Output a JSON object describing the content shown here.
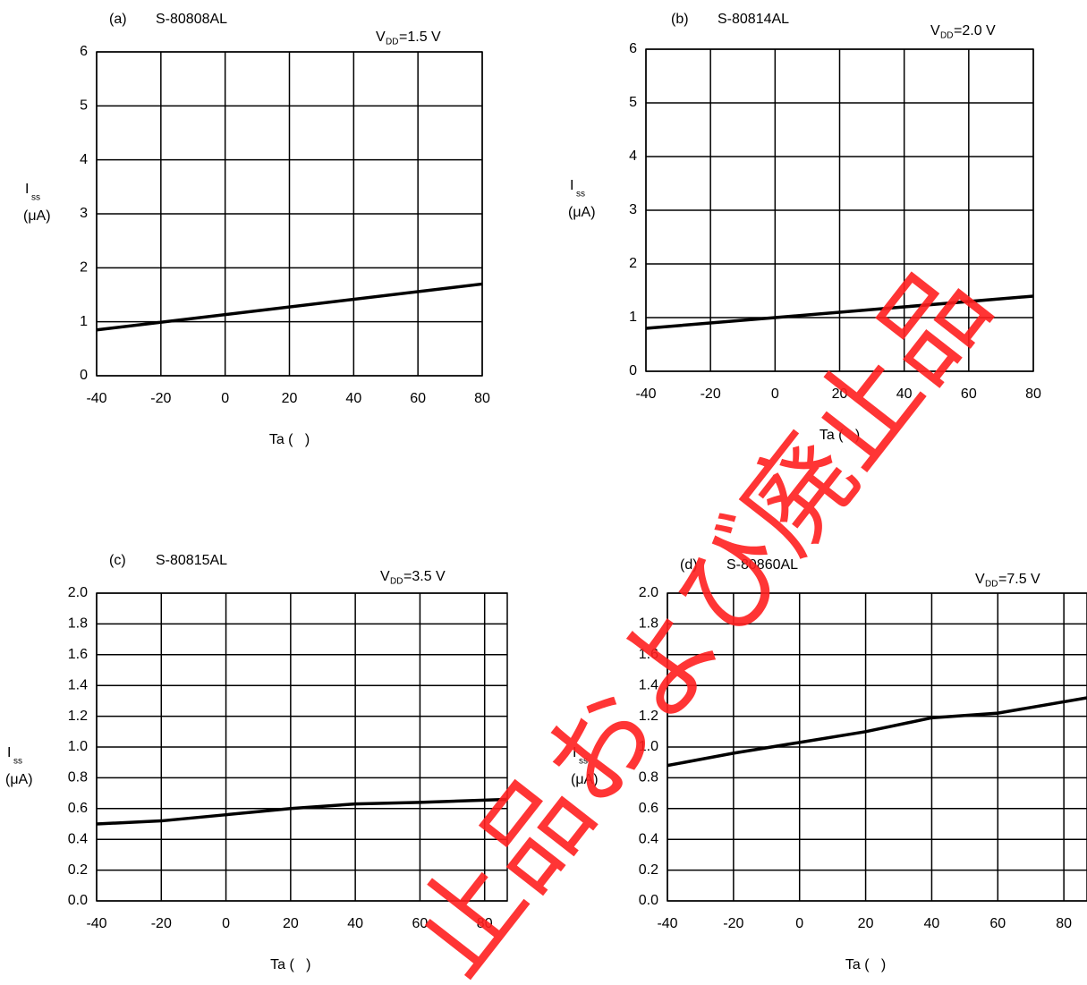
{
  "chart_data": [
    {
      "type": "line",
      "panel": "(a)",
      "title": "S-80808AL",
      "annotation": {
        "main": "V",
        "sub": "DD",
        "text": "=1.5 V"
      },
      "ylabel": {
        "main": "I",
        "sub": "ss",
        "unit": "(μA)"
      },
      "xlabel": "Ta (   )",
      "x": [
        -40,
        80
      ],
      "series": [
        {
          "color": "#000000",
          "values": [
            0.85,
            1.7
          ]
        }
      ],
      "xlim": [
        -40,
        80
      ],
      "xticks": [
        -40,
        -20,
        0,
        20,
        40,
        60,
        80
      ],
      "ylim": [
        0,
        6
      ],
      "yticks": [
        0,
        1,
        2,
        3,
        4,
        5,
        6
      ],
      "grid": true
    },
    {
      "type": "line",
      "panel": "(b)",
      "title": "S-80814AL",
      "annotation": {
        "main": "V",
        "sub": "DD",
        "text": "=2.0 V"
      },
      "ylabel": {
        "main": "I",
        "sub": "ss",
        "unit": "(μA)"
      },
      "xlabel": "Ta (   )",
      "x": [
        -40,
        0,
        40,
        80
      ],
      "series": [
        {
          "color": "#000000",
          "values": [
            0.8,
            1.0,
            1.2,
            1.4
          ]
        }
      ],
      "xlim": [
        -40,
        80
      ],
      "xticks": [
        -40,
        -20,
        0,
        20,
        40,
        60,
        80
      ],
      "ylim": [
        0,
        6
      ],
      "yticks": [
        0,
        1,
        2,
        3,
        4,
        5,
        6
      ],
      "grid": true
    },
    {
      "type": "line",
      "panel": "(c)",
      "title": "S-80815AL",
      "annotation": {
        "main": "V",
        "sub": "DD",
        "text": "=3.5 V"
      },
      "ylabel": {
        "main": "I",
        "sub": "ss",
        "unit": "(μA)"
      },
      "xlabel": "Ta (   )",
      "x": [
        -40,
        -20,
        0,
        20,
        40,
        60,
        87
      ],
      "series": [
        {
          "color": "#000000",
          "values": [
            0.5,
            0.52,
            0.56,
            0.6,
            0.63,
            0.64,
            0.66
          ]
        }
      ],
      "xlim": [
        -40,
        87
      ],
      "xticks": [
        -40,
        -20,
        0,
        20,
        40,
        60,
        80
      ],
      "ylim": [
        0,
        2
      ],
      "yticks": [
        {
          "value": 0,
          "label": "0.0"
        },
        0.2,
        0.4,
        0.6,
        0.8,
        {
          "value": 1,
          "label": "1.0"
        },
        1.2,
        1.4,
        1.6,
        1.8,
        {
          "value": 2,
          "label": "2.0"
        }
      ],
      "grid": true
    },
    {
      "type": "line",
      "panel": "(d)",
      "title": "S-80860AL",
      "annotation": {
        "main": "V",
        "sub": "DD",
        "text": "=7.5 V"
      },
      "ylabel": {
        "main": "I",
        "sub": "ss",
        "unit": "(μA)"
      },
      "xlabel": "Ta (   )",
      "x": [
        -40,
        -20,
        0,
        20,
        40,
        60,
        87
      ],
      "series": [
        {
          "color": "#000000",
          "values": [
            0.88,
            0.96,
            1.03,
            1.1,
            1.19,
            1.22,
            1.32
          ]
        }
      ],
      "xlim": [
        -40,
        87
      ],
      "xticks": [
        -40,
        -20,
        0,
        20,
        40,
        60,
        80
      ],
      "ylim": [
        0,
        2
      ],
      "yticks": [
        {
          "value": 0,
          "label": "0.0"
        },
        0.2,
        0.4,
        0.6,
        0.8,
        {
          "value": 1,
          "label": "1.0"
        },
        1.2,
        1.4,
        1.6,
        1.8,
        {
          "value": 2,
          "label": "2.0"
        }
      ],
      "grid": true
    }
  ],
  "watermark": "止品および廃止品"
}
